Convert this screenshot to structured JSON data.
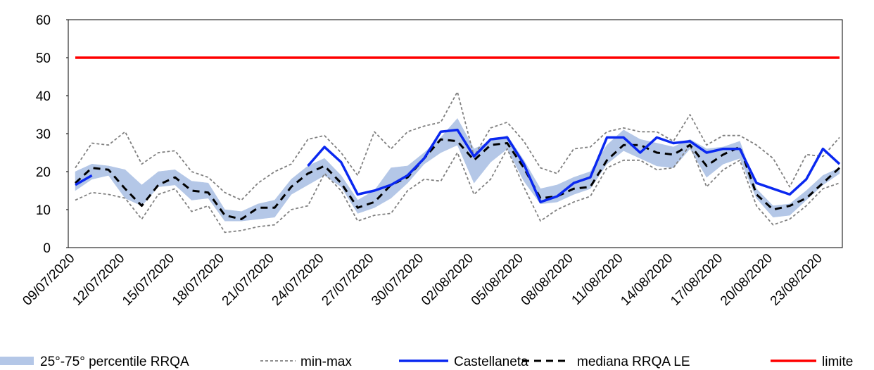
{
  "chart_data": {
    "type": "line",
    "categories": [
      "09/07/2020",
      null,
      null,
      "12/07/2020",
      null,
      null,
      "15/07/2020",
      null,
      null,
      "18/07/2020",
      null,
      null,
      "21/07/2020",
      null,
      null,
      "24/07/2020",
      null,
      null,
      "27/07/2020",
      null,
      null,
      "30/07/2020",
      null,
      null,
      "02/08/2020",
      null,
      null,
      "05/08/2020",
      null,
      null,
      "08/08/2020",
      null,
      null,
      "11/08/2020",
      null,
      null,
      "14/08/2020",
      null,
      null,
      "17/08/2020",
      null,
      null,
      "20/08/2020",
      null,
      null,
      "23/08/2020",
      null
    ],
    "ylim": [
      0,
      60
    ],
    "yticks": [
      0,
      10,
      20,
      30,
      40,
      50,
      60
    ],
    "series": [
      {
        "name": "25°-75° percentile RRQA",
        "color": "#b4c7e7",
        "style": "band",
        "low": [
          15,
          18,
          19,
          13,
          11,
          16,
          16.5,
          12.5,
          13,
          7,
          7,
          7.5,
          8,
          14,
          16.5,
          19,
          16,
          9,
          10.5,
          13,
          17,
          22,
          25,
          27,
          17,
          22.5,
          26,
          17.5,
          11.5,
          12,
          14,
          15.5,
          22,
          25.5,
          23.5,
          21.5,
          21,
          26,
          18.5,
          22,
          23.5,
          13,
          8,
          8.5,
          12.5,
          16.5,
          19.5
        ],
        "high": [
          20,
          22,
          21.5,
          20.5,
          16.5,
          20,
          20.5,
          17.5,
          17,
          10,
          9.5,
          11.5,
          12.5,
          18,
          21.5,
          23.5,
          19,
          12.5,
          15,
          21,
          21.5,
          25,
          29,
          34,
          26,
          28,
          29.5,
          23,
          15.5,
          16.5,
          18.5,
          20,
          27,
          31,
          28.5,
          27.5,
          26.5,
          28.5,
          26,
          26.5,
          28,
          15.5,
          11,
          11.5,
          15,
          19,
          21
        ]
      },
      {
        "name": "min-max",
        "color": "#808080",
        "style": "minmax",
        "min": [
          12.5,
          14.5,
          14,
          13,
          7.5,
          14,
          15.5,
          9.5,
          11,
          4,
          4.5,
          5.5,
          6,
          10,
          11,
          19.5,
          15,
          7,
          8.5,
          9,
          15,
          18,
          17.5,
          25,
          14,
          18,
          26,
          16,
          7,
          10,
          12,
          13.5,
          21,
          23,
          23,
          20.5,
          21,
          27,
          16,
          20.5,
          23,
          11,
          6,
          7.5,
          11,
          15.5,
          17
        ],
        "max": [
          21,
          27.5,
          27,
          30.5,
          22,
          25,
          25.5,
          20,
          18.5,
          14.5,
          12.5,
          17,
          20,
          22,
          28.5,
          29.5,
          25,
          19,
          30.5,
          26,
          30.5,
          32,
          33,
          41,
          24,
          31.5,
          33,
          28,
          21,
          19.5,
          26,
          26.5,
          30.5,
          31.5,
          30.5,
          30.5,
          28,
          35,
          27,
          29.5,
          29.5,
          27,
          23.5,
          16,
          24.5,
          24,
          29
        ]
      },
      {
        "name": "Castellaneta",
        "color": "#0a28f0",
        "style": "solid",
        "values": [
          16.5,
          19,
          null,
          null,
          null,
          null,
          null,
          null,
          null,
          null,
          null,
          null,
          null,
          null,
          21.5,
          26.5,
          22.5,
          14,
          15,
          16.5,
          19,
          23.5,
          30.5,
          31,
          24,
          28.5,
          29,
          22,
          12,
          13.5,
          17,
          18.5,
          29,
          29,
          25,
          29,
          27.5,
          28,
          25,
          26,
          26,
          17,
          15.5,
          14,
          18,
          26,
          22
        ]
      },
      {
        "name": "mediana RRQA LE",
        "color": "#000000",
        "style": "dashed",
        "values": [
          17,
          21,
          20.5,
          15.5,
          11,
          16.5,
          18.5,
          15,
          14.5,
          8.5,
          7.5,
          10.5,
          10.5,
          16,
          19.5,
          21.5,
          17,
          10.5,
          12,
          16.5,
          18.5,
          23.5,
          28.5,
          28,
          23,
          27,
          27.5,
          21,
          13,
          13.5,
          15.5,
          16,
          23,
          27,
          27,
          25,
          24.5,
          27,
          21.5,
          24.5,
          26.5,
          14,
          10,
          11,
          13,
          17,
          21
        ]
      },
      {
        "name": "limite",
        "color": "#ff0000",
        "style": "solid",
        "values": [
          50,
          50,
          50,
          50,
          50,
          50,
          50,
          50,
          50,
          50,
          50,
          50,
          50,
          50,
          50,
          50,
          50,
          50,
          50,
          50,
          50,
          50,
          50,
          50,
          50,
          50,
          50,
          50,
          50,
          50,
          50,
          50,
          50,
          50,
          50,
          50,
          50,
          50,
          50,
          50,
          50,
          50,
          50,
          50,
          50,
          50,
          50
        ]
      }
    ]
  }
}
